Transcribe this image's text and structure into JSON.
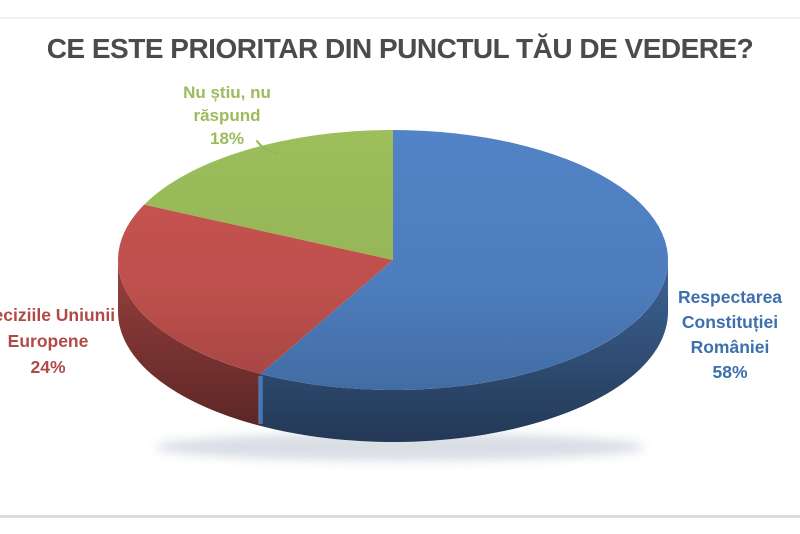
{
  "title": "CE ESTE PRIORITAR DIN PUNCTUL TĂU DE VEDERE?",
  "chart_data": {
    "type": "pie",
    "style": "3d",
    "title": "CE ESTE PRIORITAR DIN PUNCTUL TĂU DE VEDERE?",
    "start_angle_deg": 0,
    "direction": "clockwise",
    "legend_position": "outside-labels",
    "slices": [
      {
        "name": "Respectarea Constituției României",
        "pct": 58,
        "color": "#4d7dbd",
        "label_color": "#3d6fae",
        "label_lines": [
          "Respectarea",
          "Constituției",
          "României",
          "58%"
        ]
      },
      {
        "name": "Deciziile Uniunii Europene",
        "pct": 24,
        "color": "#bf504d",
        "label_color": "#b04a47",
        "label_lines": [
          "Deciziile Uniunii",
          "Europene",
          "24%"
        ]
      },
      {
        "name": "Nu știu, nu răspund",
        "pct": 18,
        "color": "#95b557",
        "label_color": "#9cbb5c",
        "label_lines": [
          "Nu știu, nu",
          "răspund",
          "18%"
        ]
      }
    ]
  }
}
